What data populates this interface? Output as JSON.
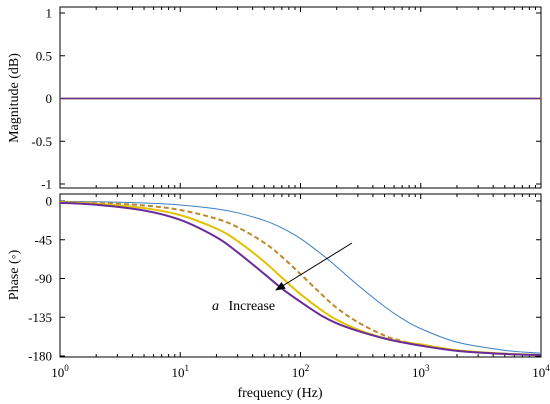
{
  "chart_data": [
    {
      "type": "line",
      "panel": "magnitude",
      "ylabel": "Magnitude (dB)",
      "xscale": "log",
      "xlim": [
        1,
        10000
      ],
      "ylim": [
        -1,
        1
      ],
      "yticks": [
        "1",
        "0.5",
        "0",
        "-0.5",
        "-1"
      ],
      "ytick_values": [
        1,
        0.5,
        0,
        -0.5,
        -1
      ],
      "series": [
        {
          "color": "#3d7fc4",
          "values": [
            0,
            0
          ]
        },
        {
          "color": "#c0882a",
          "dashed": true,
          "values": [
            0,
            0
          ]
        },
        {
          "color": "#e2c200",
          "values": [
            0,
            0
          ]
        },
        {
          "color": "#6a2c9a",
          "values": [
            0,
            0
          ]
        }
      ],
      "x": [
        1,
        10000
      ],
      "grid": false
    },
    {
      "type": "line",
      "panel": "phase",
      "ylabel": "Phase (◦)",
      "xlabel": "frequency  (Hz)",
      "xscale": "log",
      "xlim": [
        1,
        10000
      ],
      "ylim": [
        -180,
        0
      ],
      "yticks": [
        "0",
        "-45",
        "-90",
        "-135",
        "-180"
      ],
      "ytick_values": [
        0,
        -45,
        -90,
        -135,
        -180
      ],
      "xticks": [
        {
          "base": "10",
          "exp": "0",
          "value": 1
        },
        {
          "base": "10",
          "exp": "1",
          "value": 10
        },
        {
          "base": "10",
          "exp": "2",
          "value": 100
        },
        {
          "base": "10",
          "exp": "3",
          "value": 1000
        },
        {
          "base": "10",
          "exp": "4",
          "value": 10000
        }
      ],
      "x": [
        1,
        2,
        5,
        10,
        20,
        30,
        50,
        70,
        100,
        150,
        200,
        300,
        500,
        700,
        1000,
        2000,
        5000,
        10000
      ],
      "series": [
        {
          "color": "#3d7fc4",
          "width": 1,
          "values": [
            -0.5,
            -0.9,
            -2.3,
            -4.6,
            -9.1,
            -13.7,
            -22.6,
            -31.3,
            -43.6,
            -61.9,
            -76.4,
            -97.7,
            -122.5,
            -136.5,
            -148.2,
            -163.9,
            -173.4,
            -176.7
          ]
        },
        {
          "color": "#c0882a",
          "dashed": true,
          "width": 2,
          "values": [
            -1.0,
            -2.1,
            -5.2,
            -10.4,
            -20.6,
            -30.4,
            -48.5,
            -64.7,
            -84.9,
            -108.5,
            -124.0,
            -140.8,
            -156.3,
            -162.6,
            -167.7,
            -173.8,
            -177.5,
            -178.8
          ]
        },
        {
          "color": "#e2c200",
          "width": 2,
          "values": [
            -1.6,
            -3.3,
            -8.2,
            -16.4,
            -32.1,
            -46.5,
            -70.5,
            -89.0,
            -108.2,
            -126.9,
            -137.9,
            -149.3,
            -159.4,
            -163.5,
            -166.5,
            -173.3,
            -177.3,
            -178.7
          ]
        },
        {
          "color": "#6a2c9a",
          "width": 2,
          "values": [
            -2.2,
            -4.4,
            -11.0,
            -21.9,
            -42.1,
            -59.6,
            -84.7,
            -101.7,
            -117.1,
            -133.3,
            -142.0,
            -150.9,
            -159.7,
            -164.1,
            -168.0,
            -174.0,
            -177.6,
            -178.8
          ]
        }
      ],
      "annotation": {
        "text_italic": "a",
        "text": "Increase"
      },
      "grid": false
    }
  ]
}
